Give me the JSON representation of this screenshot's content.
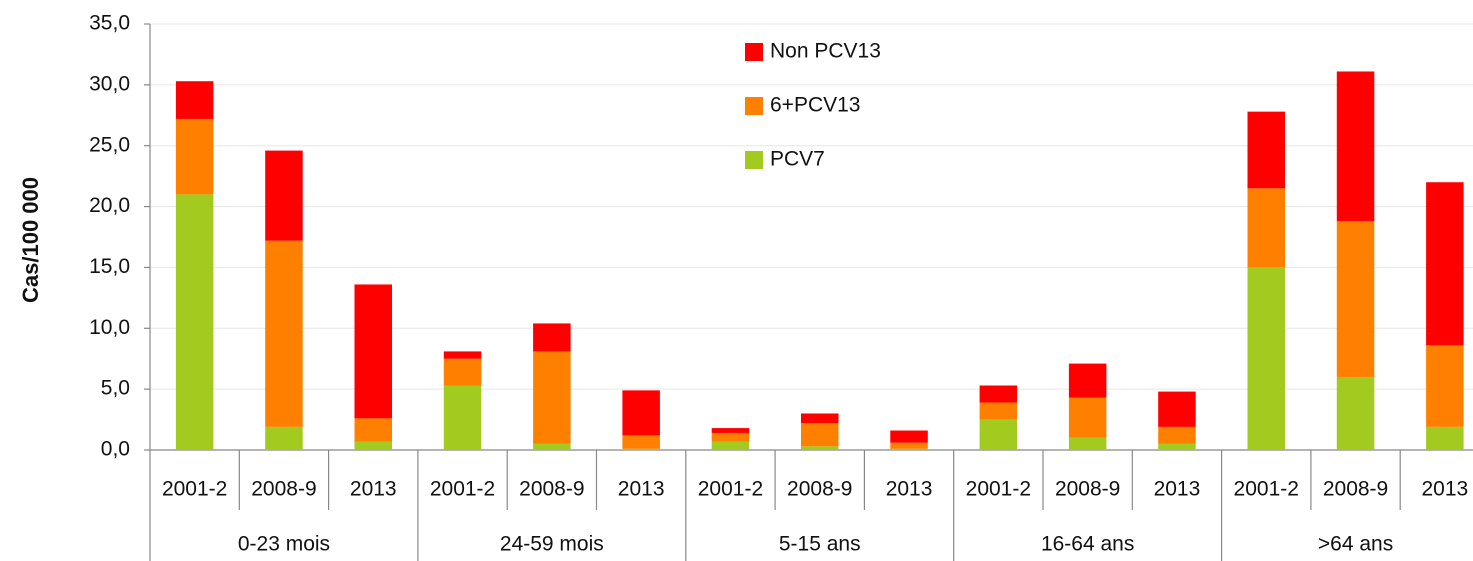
{
  "chart_data": {
    "type": "stacked-bar",
    "y_label": "Cas/100 000",
    "categories": [
      "2001-2",
      "2008-9",
      "2013",
      "2001-2",
      "2008-9",
      "2013",
      "2001-2",
      "2008-9",
      "2013",
      "2001-2",
      "2008-9",
      "2013",
      "2001-2",
      "2008-9",
      "2013"
    ],
    "groups": [
      "0-23 mois",
      "24-59 mois",
      "5-15 ans",
      "16-64 ans",
      ">64 ans"
    ],
    "series": [
      {
        "name": "PCV7",
        "color": "#a3cb1f",
        "values": [
          21.0,
          1.9,
          0.7,
          5.3,
          0.5,
          0.1,
          0.7,
          0.3,
          0.1,
          2.5,
          1.0,
          0.5,
          15.0,
          6.0,
          1.9
        ]
      },
      {
        "name": "6+PCV13",
        "color": "#ff8000",
        "values": [
          6.2,
          15.3,
          1.9,
          2.2,
          7.6,
          1.1,
          0.7,
          1.9,
          0.5,
          1.4,
          3.3,
          1.4,
          6.5,
          12.8,
          6.7
        ]
      },
      {
        "name": "Non PCV13",
        "color": "#ff0000",
        "values": [
          3.1,
          7.4,
          11.0,
          0.6,
          2.3,
          3.7,
          0.4,
          0.8,
          1.0,
          1.4,
          2.8,
          2.9,
          6.3,
          12.3,
          13.4
        ]
      }
    ],
    "ylim": [
      0,
      35
    ],
    "yticks": [
      {
        "value": 0,
        "label": "0,0"
      },
      {
        "value": 5,
        "label": "5,0"
      },
      {
        "value": 10,
        "label": "10,0"
      },
      {
        "value": 15,
        "label": "15,0"
      },
      {
        "value": 20,
        "label": "20,0"
      },
      {
        "value": 25,
        "label": "25,0"
      },
      {
        "value": 30,
        "label": "30,0"
      },
      {
        "value": 35,
        "label": "35,0"
      }
    ],
    "grid": true,
    "legend": "top"
  }
}
